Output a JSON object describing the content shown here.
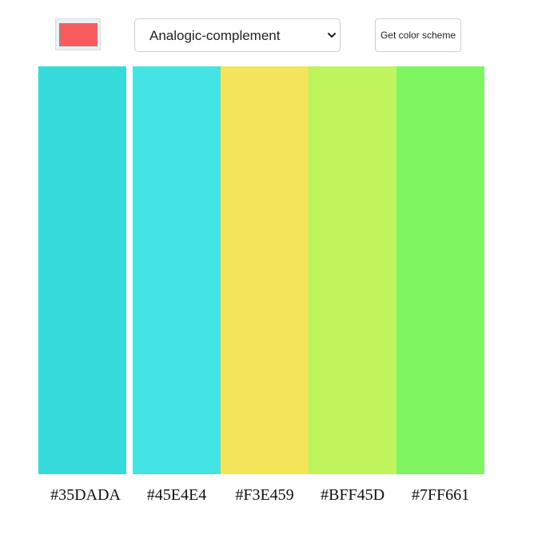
{
  "picker": {
    "color": "#F95C5C"
  },
  "scheme": {
    "mode_label": "Analogic-complement"
  },
  "button": {
    "label": "Get color scheme"
  },
  "colors": [
    {
      "hex": "#35DADA"
    },
    {
      "hex": "#45E4E4"
    },
    {
      "hex": "#F3E459"
    },
    {
      "hex": "#BFF45D"
    },
    {
      "hex": "#7FF661"
    }
  ],
  "icons": {
    "select_indicator": "chevron-down-icon"
  }
}
